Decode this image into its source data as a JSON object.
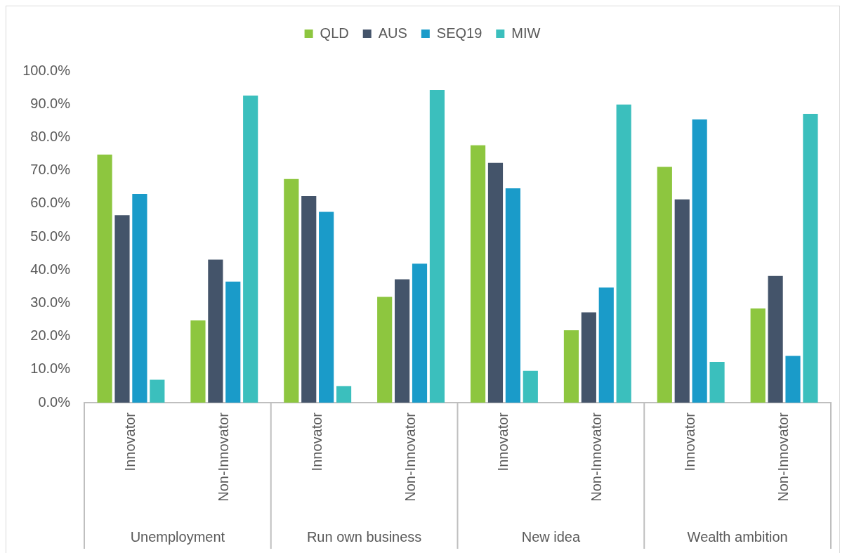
{
  "chart_data": {
    "type": "bar",
    "categories": [
      "Innovator",
      "Non-Innovator",
      "Innovator",
      "Non-Innovator",
      "Innovator",
      "Non-Innovator",
      "Innovator",
      "Non-Innovator"
    ],
    "series": [
      {
        "name": "QLD",
        "color": "#8dc63f",
        "values": [
          74.8,
          24.8,
          67.4,
          31.9,
          77.6,
          21.8,
          71.1,
          28.4
        ]
      },
      {
        "name": "AUS",
        "color": "#44546a",
        "values": [
          56.5,
          43.1,
          62.3,
          37.2,
          72.3,
          27.2,
          61.3,
          38.2
        ]
      },
      {
        "name": "SEQ19",
        "color": "#1a9bc9",
        "values": [
          62.9,
          36.5,
          57.5,
          41.9,
          64.6,
          34.7,
          85.4,
          14.1
        ]
      },
      {
        "name": "MIW",
        "color": "#3bbfbd",
        "values": [
          6.9,
          92.6,
          5.0,
          94.3,
          9.6,
          89.9,
          12.3,
          87.1
        ]
      }
    ],
    "ylim": [
      0,
      100
    ],
    "yticks": [
      {
        "value": 0,
        "label": "0.0%"
      },
      {
        "value": 10,
        "label": "10.0%"
      },
      {
        "value": 20,
        "label": "20.0%"
      },
      {
        "value": 30,
        "label": "30.0%"
      },
      {
        "value": 40,
        "label": "40.0%"
      },
      {
        "value": 50,
        "label": "50.0%"
      },
      {
        "value": 60,
        "label": "60.0%"
      },
      {
        "value": 70,
        "label": "70.0%"
      },
      {
        "value": 80,
        "label": "80.0%"
      },
      {
        "value": 90,
        "label": "90.0%"
      },
      {
        "value": 100,
        "label": "100.0%"
      }
    ],
    "annotations": [
      "Unemployment",
      "Run own business",
      "New idea",
      "Wealth ambition"
    ],
    "legend": "top",
    "grid": false
  }
}
